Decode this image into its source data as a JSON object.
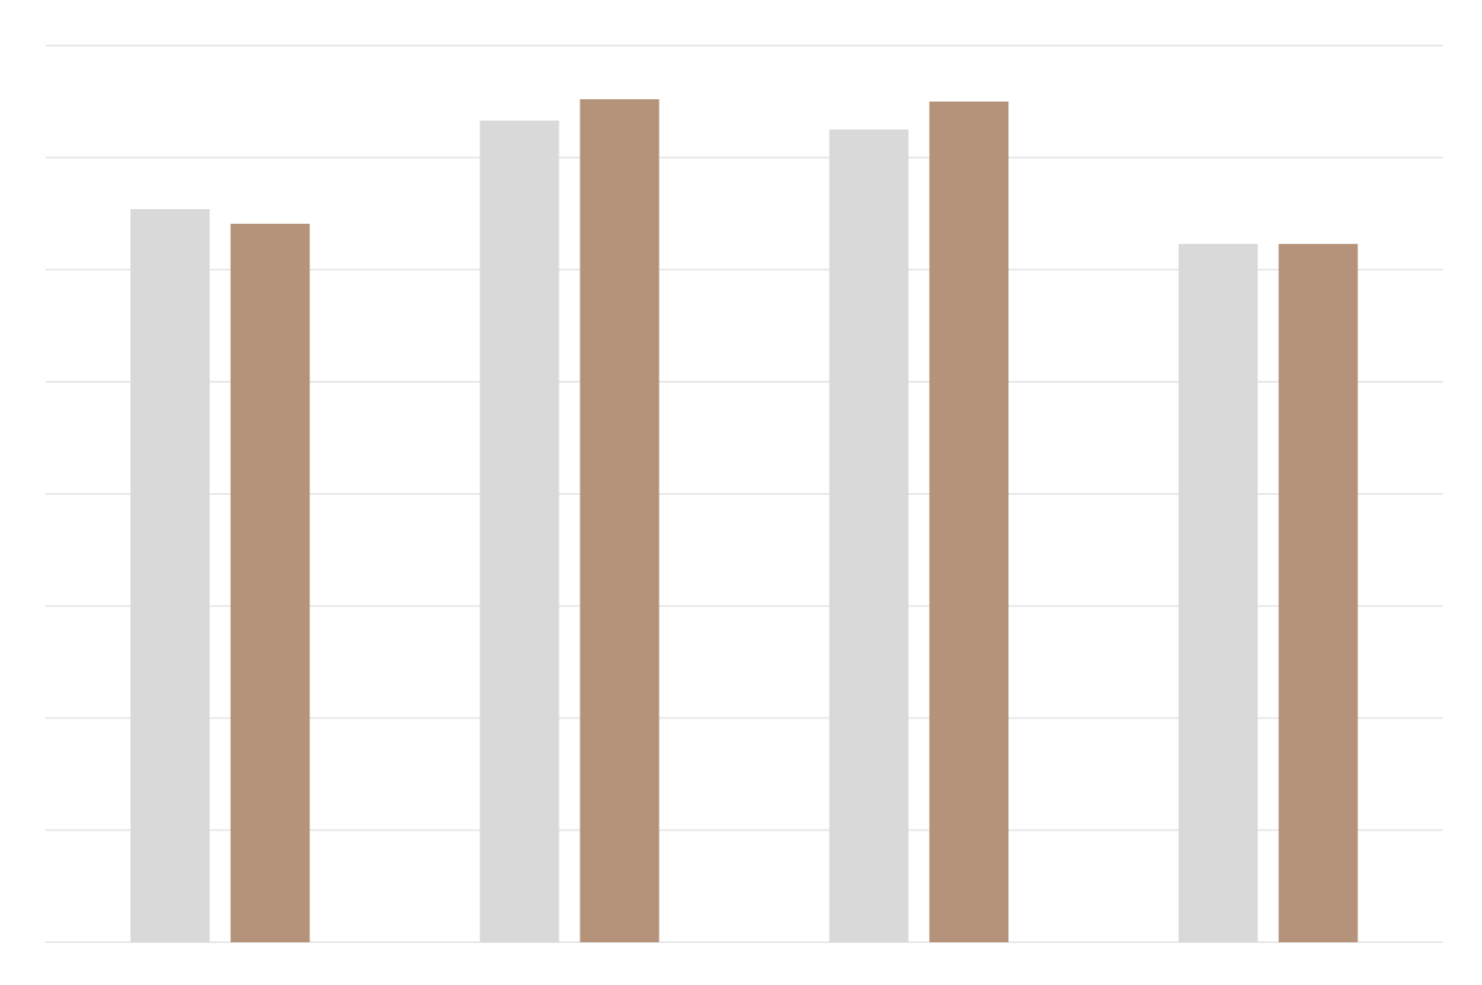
{
  "chart_data": {
    "type": "bar",
    "categories": [
      null,
      null,
      null,
      null
    ],
    "series": [
      {
        "color": "#d9d9d9",
        "values": [
          6.54,
          7.33,
          7.25,
          6.23
        ]
      },
      {
        "color": "#b5937a",
        "values": [
          6.41,
          7.52,
          7.5,
          6.23
        ]
      }
    ],
    "ylim": [
      0,
      8
    ],
    "yticks": [
      0,
      1,
      2,
      3,
      4,
      5,
      6,
      7,
      8
    ],
    "grid": true
  }
}
